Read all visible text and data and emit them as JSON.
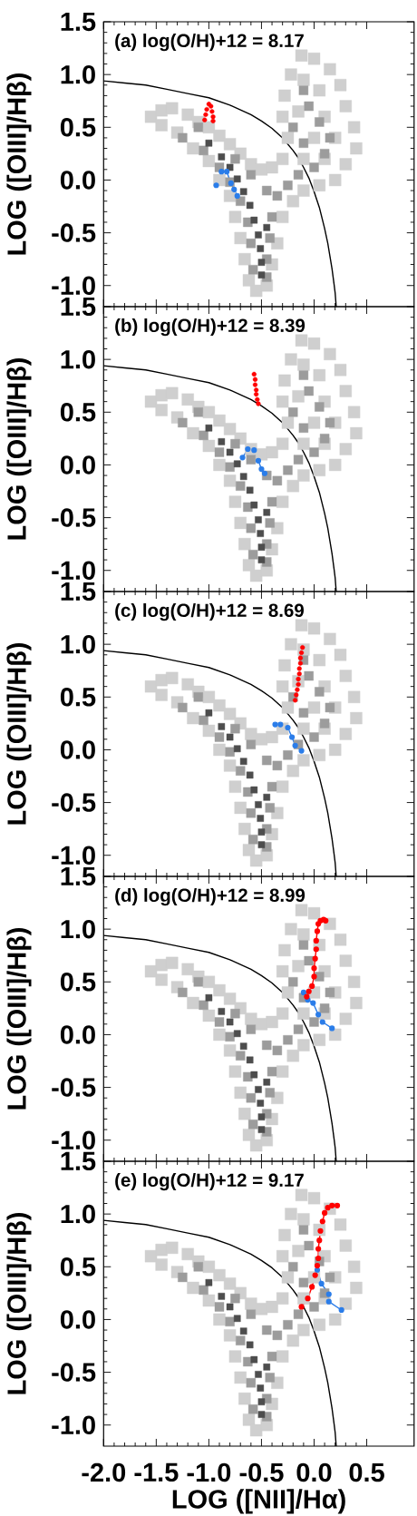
{
  "chart_data": [
    {
      "type": "scatter",
      "annotations": [
        "(a) log(O/H)+12 = 8.17"
      ],
      "ylabel": "LOG ([OIII]/Hβ)",
      "xlim": [
        -2.0,
        0.95
      ],
      "ylim": [
        -1.2,
        1.5
      ],
      "xticks": [
        -2,
        -1.5,
        -1,
        -0.5,
        0,
        0.5
      ],
      "yticks": [
        {
          "value": -1,
          "label": "-1.0"
        },
        -0.5,
        {
          "value": 0,
          "label": "0.0"
        },
        0.5,
        {
          "value": 1,
          "label": "1.0"
        },
        1.5
      ],
      "tick_labels": "y",
      "series": [
        {
          "color": "#cfcfcf",
          "marker": "square",
          "x": [
            -1.55,
            -1.45,
            -1.35,
            -1.45,
            -1.3,
            -1.2,
            -1.1,
            -1.0,
            -1.15,
            -1.0,
            -0.9,
            -0.8,
            -0.7,
            -0.9,
            -0.8,
            -0.75,
            -0.7,
            -0.66,
            -0.62,
            -0.55,
            -0.45,
            -0.4,
            -0.35,
            -0.6,
            -0.5,
            -0.4,
            -0.3,
            -0.3,
            -0.2,
            -0.1,
            0.05,
            0.2,
            0.3,
            0.4,
            0.38,
            0.3,
            0.25,
            0.15,
            0.0,
            -0.12,
            -0.22,
            -0.28,
            -0.3,
            -0.25,
            -0.1,
            0.1,
            0.2,
            0.1,
            0.05,
            -0.1,
            -0.15,
            0.0
          ],
          "values": [
            0.6,
            0.66,
            0.68,
            0.52,
            0.45,
            0.62,
            0.55,
            0.5,
            0.3,
            0.18,
            0.42,
            0.34,
            0.25,
            0.0,
            -0.15,
            -0.35,
            -0.55,
            -0.75,
            -0.95,
            -1.05,
            -1.0,
            -0.8,
            -0.6,
            0.15,
            0.1,
            0.12,
            0.2,
            -0.35,
            -0.2,
            -0.1,
            -0.05,
            0.0,
            0.15,
            0.3,
            0.5,
            0.7,
            0.9,
            1.05,
            1.15,
            1.18,
            1.0,
            0.8,
            0.6,
            0.4,
            0.2,
            0.2,
            0.4,
            0.6,
            0.85,
            0.95,
            0.65,
            0.4
          ]
        },
        {
          "color": "#9c9c9c",
          "marker": "square",
          "x": [
            -1.25,
            -1.1,
            -1.05,
            -0.9,
            -0.8,
            -0.7,
            -0.63,
            -0.6,
            -0.58,
            -0.42,
            -0.4,
            -0.45,
            -0.45,
            -0.6,
            -0.45,
            -0.35,
            -0.25,
            -0.15,
            0.0,
            0.1,
            0.15,
            0.05,
            -0.05,
            -0.1,
            -0.2,
            -0.1,
            -0.75
          ],
          "values": [
            0.4,
            0.5,
            0.28,
            0.12,
            -0.02,
            -0.2,
            -0.4,
            -0.6,
            -0.85,
            -0.55,
            -0.35,
            -0.75,
            -0.92,
            0.05,
            -0.1,
            -0.15,
            -0.05,
            0.05,
            0.12,
            0.25,
            0.4,
            0.55,
            0.7,
            0.85,
            0.5,
            0.35,
            0.2
          ]
        },
        {
          "color": "#4d4d4d",
          "marker": "square",
          "x": [
            -1.0,
            -0.88,
            -0.8,
            -0.73,
            -0.67,
            -0.61,
            -0.57,
            -0.53,
            -0.51,
            -0.5,
            -0.5,
            -0.45
          ],
          "values": [
            0.35,
            0.22,
            0.12,
            0.01,
            -0.11,
            -0.24,
            -0.38,
            -0.52,
            -0.65,
            -0.78,
            -0.9,
            -0.45
          ]
        },
        {
          "type": "line",
          "color": "#000000",
          "marker": "none",
          "x": [
            -2.0,
            -1.8,
            -1.6,
            -1.4,
            -1.2,
            -1.0,
            -0.8,
            -0.6,
            -0.5,
            -0.4,
            -0.3,
            -0.2,
            -0.15,
            -0.1,
            -0.05,
            0.0,
            0.05,
            0.1,
            0.13,
            0.15,
            0.17,
            0.19,
            0.2,
            0.21
          ],
          "values": [
            0.94,
            0.92,
            0.9,
            0.86,
            0.82,
            0.78,
            0.71,
            0.62,
            0.56,
            0.49,
            0.4,
            0.28,
            0.21,
            0.12,
            0.02,
            -0.11,
            -0.26,
            -0.46,
            -0.6,
            -0.72,
            -0.84,
            -0.99,
            -1.07,
            -1.2
          ]
        },
        {
          "type": "line",
          "color": "#2b7de9",
          "marker": "circle",
          "x": [
            -0.93,
            -0.88,
            -0.83,
            -0.79,
            -0.76,
            -0.73
          ],
          "values": [
            -0.05,
            0.08,
            0.08,
            -0.03,
            -0.09,
            -0.15
          ]
        },
        {
          "color": "#ff0000",
          "marker": "circle",
          "x": [
            -1.04,
            -1.03,
            -1.02,
            -1.0,
            -0.98,
            -0.97,
            -0.96,
            -0.96
          ],
          "values": [
            0.57,
            0.62,
            0.67,
            0.72,
            0.7,
            0.65,
            0.6,
            0.56
          ]
        }
      ]
    },
    {
      "type": "scatter",
      "annotations": [
        "(b) log(O/H)+12 = 8.39"
      ],
      "ylabel": "LOG ([OIII]/Hβ)",
      "xlim": [
        -2.0,
        0.95
      ],
      "ylim": [
        -1.2,
        1.5
      ],
      "xticks": [
        -2,
        -1.5,
        -1,
        -0.5,
        0,
        0.5
      ],
      "yticks": [
        {
          "value": -1,
          "label": "-1.0"
        },
        -0.5,
        {
          "value": 0,
          "label": "0.0"
        },
        0.5,
        {
          "value": 1,
          "label": "1.0"
        },
        1.5
      ],
      "tick_labels": "y",
      "series": [
        {
          "color": "#cfcfcf",
          "marker": "square",
          "x": [
            -1.55,
            -1.45,
            -1.35,
            -1.45,
            -1.3,
            -1.2,
            -1.1,
            -1.0,
            -1.15,
            -1.0,
            -0.9,
            -0.8,
            -0.7,
            -0.9,
            -0.8,
            -0.75,
            -0.7,
            -0.66,
            -0.62,
            -0.55,
            -0.45,
            -0.4,
            -0.35,
            -0.6,
            -0.5,
            -0.4,
            -0.3,
            -0.3,
            -0.2,
            -0.1,
            0.05,
            0.2,
            0.3,
            0.4,
            0.38,
            0.3,
            0.25,
            0.15,
            0.0,
            -0.12,
            -0.22,
            -0.28,
            -0.3,
            -0.25,
            -0.1,
            0.1,
            0.2,
            0.1,
            0.05,
            -0.1,
            -0.15,
            0.0
          ],
          "values": [
            0.6,
            0.66,
            0.68,
            0.52,
            0.45,
            0.62,
            0.55,
            0.5,
            0.3,
            0.18,
            0.42,
            0.34,
            0.25,
            0.0,
            -0.15,
            -0.35,
            -0.55,
            -0.75,
            -0.95,
            -1.05,
            -1.0,
            -0.8,
            -0.6,
            0.15,
            0.1,
            0.12,
            0.2,
            -0.35,
            -0.2,
            -0.1,
            -0.05,
            0.0,
            0.15,
            0.3,
            0.5,
            0.7,
            0.9,
            1.05,
            1.15,
            1.18,
            1.0,
            0.8,
            0.6,
            0.4,
            0.2,
            0.2,
            0.4,
            0.6,
            0.85,
            0.95,
            0.65,
            0.4
          ]
        },
        {
          "color": "#9c9c9c",
          "marker": "square",
          "x": [
            -1.25,
            -1.1,
            -1.05,
            -0.9,
            -0.8,
            -0.7,
            -0.63,
            -0.6,
            -0.58,
            -0.42,
            -0.4,
            -0.45,
            -0.45,
            -0.6,
            -0.45,
            -0.35,
            -0.25,
            -0.15,
            0.0,
            0.1,
            0.15,
            0.05,
            -0.05,
            -0.1,
            -0.2,
            -0.1,
            -0.75
          ],
          "values": [
            0.4,
            0.5,
            0.28,
            0.12,
            -0.02,
            -0.2,
            -0.4,
            -0.6,
            -0.85,
            -0.55,
            -0.35,
            -0.75,
            -0.92,
            0.05,
            -0.1,
            -0.15,
            -0.05,
            0.05,
            0.12,
            0.25,
            0.4,
            0.55,
            0.7,
            0.85,
            0.5,
            0.35,
            0.2
          ]
        },
        {
          "color": "#4d4d4d",
          "marker": "square",
          "x": [
            -1.0,
            -0.88,
            -0.8,
            -0.73,
            -0.67,
            -0.61,
            -0.57,
            -0.53,
            -0.51,
            -0.5,
            -0.5,
            -0.45
          ],
          "values": [
            0.35,
            0.22,
            0.12,
            0.01,
            -0.11,
            -0.24,
            -0.38,
            -0.52,
            -0.65,
            -0.78,
            -0.9,
            -0.45
          ]
        },
        {
          "type": "line",
          "color": "#000000",
          "marker": "none",
          "x": [
            -2.0,
            -1.8,
            -1.6,
            -1.4,
            -1.2,
            -1.0,
            -0.8,
            -0.6,
            -0.5,
            -0.4,
            -0.3,
            -0.2,
            -0.15,
            -0.1,
            -0.05,
            0.0,
            0.05,
            0.1,
            0.13,
            0.15,
            0.17,
            0.19,
            0.2,
            0.21
          ],
          "values": [
            0.94,
            0.92,
            0.9,
            0.86,
            0.82,
            0.78,
            0.71,
            0.62,
            0.56,
            0.49,
            0.4,
            0.28,
            0.21,
            0.12,
            0.02,
            -0.11,
            -0.26,
            -0.46,
            -0.6,
            -0.72,
            -0.84,
            -0.99,
            -1.07,
            -1.2
          ]
        },
        {
          "type": "line",
          "color": "#2b7de9",
          "marker": "circle",
          "x": [
            -0.68,
            -0.63,
            -0.57,
            -0.53,
            -0.5,
            -0.47
          ],
          "values": [
            0.07,
            0.15,
            0.14,
            0.04,
            -0.04,
            -0.08
          ]
        },
        {
          "color": "#ff0000",
          "marker": "circle",
          "x": [
            -0.57,
            -0.56,
            -0.56,
            -0.55,
            -0.55,
            -0.54,
            -0.53
          ],
          "values": [
            0.86,
            0.81,
            0.76,
            0.71,
            0.67,
            0.62,
            0.58
          ]
        }
      ]
    },
    {
      "type": "scatter",
      "annotations": [
        "(c) log(O/H)+12 = 8.69"
      ],
      "ylabel": "LOG ([OIII]/Hβ)",
      "xlim": [
        -2.0,
        0.95
      ],
      "ylim": [
        -1.2,
        1.5
      ],
      "xticks": [
        -2,
        -1.5,
        -1,
        -0.5,
        0,
        0.5
      ],
      "yticks": [
        {
          "value": -1,
          "label": "-1.0"
        },
        -0.5,
        {
          "value": 0,
          "label": "0.0"
        },
        0.5,
        {
          "value": 1,
          "label": "1.0"
        },
        1.5
      ],
      "tick_labels": "y",
      "series": [
        {
          "color": "#cfcfcf",
          "marker": "square",
          "x": [
            -1.55,
            -1.45,
            -1.35,
            -1.45,
            -1.3,
            -1.2,
            -1.1,
            -1.0,
            -1.15,
            -1.0,
            -0.9,
            -0.8,
            -0.7,
            -0.9,
            -0.8,
            -0.75,
            -0.7,
            -0.66,
            -0.62,
            -0.55,
            -0.45,
            -0.4,
            -0.35,
            -0.6,
            -0.5,
            -0.4,
            -0.3,
            -0.3,
            -0.2,
            -0.1,
            0.05,
            0.2,
            0.3,
            0.4,
            0.38,
            0.3,
            0.25,
            0.15,
            0.0,
            -0.12,
            -0.22,
            -0.28,
            -0.3,
            -0.25,
            -0.1,
            0.1,
            0.2,
            0.1,
            0.05,
            -0.1,
            -0.15,
            0.0
          ],
          "values": [
            0.6,
            0.66,
            0.68,
            0.52,
            0.45,
            0.62,
            0.55,
            0.5,
            0.3,
            0.18,
            0.42,
            0.34,
            0.25,
            0.0,
            -0.15,
            -0.35,
            -0.55,
            -0.75,
            -0.95,
            -1.05,
            -1.0,
            -0.8,
            -0.6,
            0.15,
            0.1,
            0.12,
            0.2,
            -0.35,
            -0.2,
            -0.1,
            -0.05,
            0.0,
            0.15,
            0.3,
            0.5,
            0.7,
            0.9,
            1.05,
            1.15,
            1.18,
            1.0,
            0.8,
            0.6,
            0.4,
            0.2,
            0.2,
            0.4,
            0.6,
            0.85,
            0.95,
            0.65,
            0.4
          ]
        },
        {
          "color": "#9c9c9c",
          "marker": "square",
          "x": [
            -1.25,
            -1.1,
            -1.05,
            -0.9,
            -0.8,
            -0.7,
            -0.63,
            -0.6,
            -0.58,
            -0.42,
            -0.4,
            -0.45,
            -0.45,
            -0.6,
            -0.45,
            -0.35,
            -0.25,
            -0.15,
            0.0,
            0.1,
            0.15,
            0.05,
            -0.05,
            -0.1,
            -0.2,
            -0.1,
            -0.75
          ],
          "values": [
            0.4,
            0.5,
            0.28,
            0.12,
            -0.02,
            -0.2,
            -0.4,
            -0.6,
            -0.85,
            -0.55,
            -0.35,
            -0.75,
            -0.92,
            0.05,
            -0.1,
            -0.15,
            -0.05,
            0.05,
            0.12,
            0.25,
            0.4,
            0.55,
            0.7,
            0.85,
            0.5,
            0.35,
            0.2
          ]
        },
        {
          "color": "#4d4d4d",
          "marker": "square",
          "x": [
            -1.0,
            -0.88,
            -0.8,
            -0.73,
            -0.67,
            -0.61,
            -0.57,
            -0.53,
            -0.51,
            -0.5,
            -0.5,
            -0.45
          ],
          "values": [
            0.35,
            0.22,
            0.12,
            0.01,
            -0.11,
            -0.24,
            -0.38,
            -0.52,
            -0.65,
            -0.78,
            -0.9,
            -0.45
          ]
        },
        {
          "type": "line",
          "color": "#000000",
          "marker": "none",
          "x": [
            -2.0,
            -1.8,
            -1.6,
            -1.4,
            -1.2,
            -1.0,
            -0.8,
            -0.6,
            -0.5,
            -0.4,
            -0.3,
            -0.2,
            -0.15,
            -0.1,
            -0.05,
            0.0,
            0.05,
            0.1,
            0.13,
            0.15,
            0.17,
            0.19,
            0.2,
            0.21
          ],
          "values": [
            0.94,
            0.92,
            0.9,
            0.86,
            0.82,
            0.78,
            0.71,
            0.62,
            0.56,
            0.49,
            0.4,
            0.28,
            0.21,
            0.12,
            0.02,
            -0.11,
            -0.26,
            -0.46,
            -0.6,
            -0.72,
            -0.84,
            -0.99,
            -1.07,
            -1.2
          ]
        },
        {
          "type": "line",
          "color": "#2b7de9",
          "marker": "circle",
          "x": [
            -0.37,
            -0.32,
            -0.25,
            -0.21,
            -0.18,
            -0.12
          ],
          "values": [
            0.24,
            0.24,
            0.21,
            0.12,
            0.04,
            -0.01
          ]
        },
        {
          "color": "#ff0000",
          "marker": "circle",
          "x": [
            -0.18,
            -0.17,
            -0.16,
            -0.15,
            -0.15,
            -0.14,
            -0.14,
            -0.13,
            -0.13,
            -0.12,
            -0.11
          ],
          "values": [
            0.47,
            0.52,
            0.57,
            0.62,
            0.67,
            0.72,
            0.77,
            0.82,
            0.87,
            0.92,
            0.97
          ]
        }
      ]
    },
    {
      "type": "scatter",
      "annotations": [
        "(d) log(O/H)+12 = 8.99"
      ],
      "ylabel": "LOG ([OIII]/Hβ)",
      "xlim": [
        -2.0,
        0.95
      ],
      "ylim": [
        -1.2,
        1.5
      ],
      "xticks": [
        -2,
        -1.5,
        -1,
        -0.5,
        0,
        0.5
      ],
      "yticks": [
        {
          "value": -1,
          "label": "-1.0"
        },
        -0.5,
        {
          "value": 0,
          "label": "0.0"
        },
        0.5,
        {
          "value": 1,
          "label": "1.0"
        },
        1.5
      ],
      "tick_labels": "y",
      "series": [
        {
          "color": "#cfcfcf",
          "marker": "square",
          "x": [
            -1.55,
            -1.45,
            -1.35,
            -1.45,
            -1.3,
            -1.2,
            -1.1,
            -1.0,
            -1.15,
            -1.0,
            -0.9,
            -0.8,
            -0.7,
            -0.9,
            -0.8,
            -0.75,
            -0.7,
            -0.66,
            -0.62,
            -0.55,
            -0.45,
            -0.4,
            -0.35,
            -0.6,
            -0.5,
            -0.4,
            -0.3,
            -0.3,
            -0.2,
            -0.1,
            0.05,
            0.2,
            0.3,
            0.4,
            0.38,
            0.3,
            0.25,
            0.15,
            0.0,
            -0.12,
            -0.22,
            -0.28,
            -0.3,
            -0.25,
            -0.1,
            0.1,
            0.2,
            0.1,
            0.05,
            -0.1,
            -0.15,
            0.0
          ],
          "values": [
            0.6,
            0.66,
            0.68,
            0.52,
            0.45,
            0.62,
            0.55,
            0.5,
            0.3,
            0.18,
            0.42,
            0.34,
            0.25,
            0.0,
            -0.15,
            -0.35,
            -0.55,
            -0.75,
            -0.95,
            -1.05,
            -1.0,
            -0.8,
            -0.6,
            0.15,
            0.1,
            0.12,
            0.2,
            -0.35,
            -0.2,
            -0.1,
            -0.05,
            0.0,
            0.15,
            0.3,
            0.5,
            0.7,
            0.9,
            1.05,
            1.15,
            1.18,
            1.0,
            0.8,
            0.6,
            0.4,
            0.2,
            0.2,
            0.4,
            0.6,
            0.85,
            0.95,
            0.65,
            0.4
          ]
        },
        {
          "color": "#9c9c9c",
          "marker": "square",
          "x": [
            -1.25,
            -1.1,
            -1.05,
            -0.9,
            -0.8,
            -0.7,
            -0.63,
            -0.6,
            -0.58,
            -0.42,
            -0.4,
            -0.45,
            -0.45,
            -0.6,
            -0.45,
            -0.35,
            -0.25,
            -0.15,
            0.0,
            0.1,
            0.15,
            0.05,
            -0.05,
            -0.1,
            -0.2,
            -0.1,
            -0.75
          ],
          "values": [
            0.4,
            0.5,
            0.28,
            0.12,
            -0.02,
            -0.2,
            -0.4,
            -0.6,
            -0.85,
            -0.55,
            -0.35,
            -0.75,
            -0.92,
            0.05,
            -0.1,
            -0.15,
            -0.05,
            0.05,
            0.12,
            0.25,
            0.4,
            0.55,
            0.7,
            0.85,
            0.5,
            0.35,
            0.2
          ]
        },
        {
          "color": "#4d4d4d",
          "marker": "square",
          "x": [
            -1.0,
            -0.88,
            -0.8,
            -0.73,
            -0.67,
            -0.61,
            -0.57,
            -0.53,
            -0.51,
            -0.5,
            -0.5,
            -0.45
          ],
          "values": [
            0.35,
            0.22,
            0.12,
            0.01,
            -0.11,
            -0.24,
            -0.38,
            -0.52,
            -0.65,
            -0.78,
            -0.9,
            -0.45
          ]
        },
        {
          "type": "line",
          "color": "#000000",
          "marker": "none",
          "x": [
            -2.0,
            -1.8,
            -1.6,
            -1.4,
            -1.2,
            -1.0,
            -0.8,
            -0.6,
            -0.5,
            -0.4,
            -0.3,
            -0.2,
            -0.15,
            -0.1,
            -0.05,
            0.0,
            0.05,
            0.1,
            0.13,
            0.15,
            0.17,
            0.19,
            0.2,
            0.21
          ],
          "values": [
            0.94,
            0.92,
            0.9,
            0.86,
            0.82,
            0.78,
            0.71,
            0.62,
            0.56,
            0.49,
            0.4,
            0.28,
            0.21,
            0.12,
            0.02,
            -0.11,
            -0.26,
            -0.46,
            -0.6,
            -0.72,
            -0.84,
            -0.99,
            -1.07,
            -1.2
          ]
        },
        {
          "type": "line",
          "color": "#2b7de9",
          "marker": "circle",
          "x": [
            -0.1,
            -0.06,
            -0.01,
            0.04,
            0.08,
            0.17
          ],
          "values": [
            0.4,
            0.33,
            0.3,
            0.19,
            0.12,
            0.06
          ]
        },
        {
          "type": "line",
          "color": "#ff0000",
          "marker": "circle",
          "x": [
            -0.07,
            -0.05,
            -0.02,
            0.0,
            0.0,
            0.01,
            0.02,
            0.02,
            0.03,
            0.04,
            0.06,
            0.09,
            0.11
          ],
          "values": [
            0.36,
            0.41,
            0.46,
            0.55,
            0.63,
            0.72,
            0.81,
            0.89,
            0.98,
            1.05,
            1.08,
            1.09,
            1.08
          ]
        }
      ]
    },
    {
      "type": "scatter",
      "annotations": [
        "(e) log(O/H)+12 = 9.17"
      ],
      "xlabel": "LOG ([NII]/Hα)",
      "ylabel": "LOG ([OIII]/Hβ)",
      "xlim": [
        -2.0,
        0.95
      ],
      "ylim": [
        -1.2,
        1.5
      ],
      "xticks": [
        {
          "value": -2,
          "label": "-2.0"
        },
        -1.5,
        {
          "value": -1,
          "label": "-1.0"
        },
        -0.5,
        {
          "value": 0,
          "label": "0.0"
        },
        0.5
      ],
      "yticks": [
        {
          "value": -1,
          "label": "-1.0"
        },
        -0.5,
        {
          "value": 0,
          "label": "0.0"
        },
        0.5,
        {
          "value": 1,
          "label": "1.0"
        },
        1.5
      ],
      "series": [
        {
          "color": "#cfcfcf",
          "marker": "square",
          "x": [
            -1.55,
            -1.45,
            -1.35,
            -1.45,
            -1.3,
            -1.2,
            -1.1,
            -1.0,
            -1.15,
            -1.0,
            -0.9,
            -0.8,
            -0.7,
            -0.9,
            -0.8,
            -0.75,
            -0.7,
            -0.66,
            -0.62,
            -0.55,
            -0.45,
            -0.4,
            -0.35,
            -0.6,
            -0.5,
            -0.4,
            -0.3,
            -0.3,
            -0.2,
            -0.1,
            0.05,
            0.2,
            0.3,
            0.4,
            0.38,
            0.3,
            0.25,
            0.15,
            0.0,
            -0.12,
            -0.22,
            -0.28,
            -0.3,
            -0.25,
            -0.1,
            0.1,
            0.2,
            0.1,
            0.05,
            -0.1,
            -0.15,
            0.0
          ],
          "values": [
            0.6,
            0.66,
            0.68,
            0.52,
            0.45,
            0.62,
            0.55,
            0.5,
            0.3,
            0.18,
            0.42,
            0.34,
            0.25,
            0.0,
            -0.15,
            -0.35,
            -0.55,
            -0.75,
            -0.95,
            -1.05,
            -1.0,
            -0.8,
            -0.6,
            0.15,
            0.1,
            0.12,
            0.2,
            -0.35,
            -0.2,
            -0.1,
            -0.05,
            0.0,
            0.15,
            0.3,
            0.5,
            0.7,
            0.9,
            1.05,
            1.15,
            1.18,
            1.0,
            0.8,
            0.6,
            0.4,
            0.2,
            0.2,
            0.4,
            0.6,
            0.85,
            0.95,
            0.65,
            0.4
          ]
        },
        {
          "color": "#9c9c9c",
          "marker": "square",
          "x": [
            -1.25,
            -1.1,
            -1.05,
            -0.9,
            -0.8,
            -0.7,
            -0.63,
            -0.6,
            -0.58,
            -0.42,
            -0.4,
            -0.45,
            -0.45,
            -0.6,
            -0.45,
            -0.35,
            -0.25,
            -0.15,
            0.0,
            0.1,
            0.15,
            0.05,
            -0.05,
            -0.1,
            -0.2,
            -0.1,
            -0.75
          ],
          "values": [
            0.4,
            0.5,
            0.28,
            0.12,
            -0.02,
            -0.2,
            -0.4,
            -0.6,
            -0.85,
            -0.55,
            -0.35,
            -0.75,
            -0.92,
            0.05,
            -0.1,
            -0.15,
            -0.05,
            0.05,
            0.12,
            0.25,
            0.4,
            0.55,
            0.7,
            0.85,
            0.5,
            0.35,
            0.2
          ]
        },
        {
          "color": "#4d4d4d",
          "marker": "square",
          "x": [
            -1.0,
            -0.88,
            -0.8,
            -0.73,
            -0.67,
            -0.61,
            -0.57,
            -0.53,
            -0.51,
            -0.5,
            -0.5,
            -0.45
          ],
          "values": [
            0.35,
            0.22,
            0.12,
            0.01,
            -0.11,
            -0.24,
            -0.38,
            -0.52,
            -0.65,
            -0.78,
            -0.9,
            -0.45
          ]
        },
        {
          "type": "line",
          "color": "#000000",
          "marker": "none",
          "x": [
            -2.0,
            -1.8,
            -1.6,
            -1.4,
            -1.2,
            -1.0,
            -0.8,
            -0.6,
            -0.5,
            -0.4,
            -0.3,
            -0.2,
            -0.15,
            -0.1,
            -0.05,
            0.0,
            0.05,
            0.1,
            0.13,
            0.15,
            0.17,
            0.19,
            0.2,
            0.21
          ],
          "values": [
            0.94,
            0.92,
            0.9,
            0.86,
            0.82,
            0.78,
            0.71,
            0.62,
            0.56,
            0.49,
            0.4,
            0.28,
            0.21,
            0.12,
            0.02,
            -0.11,
            -0.26,
            -0.46,
            -0.6,
            -0.72,
            -0.84,
            -0.99,
            -1.07,
            -1.2
          ]
        },
        {
          "type": "line",
          "color": "#2b7de9",
          "marker": "circle",
          "x": [
            0.03,
            0.07,
            0.14,
            0.14,
            0.26
          ],
          "values": [
            0.47,
            0.34,
            0.24,
            0.17,
            0.09
          ]
        },
        {
          "type": "line",
          "color": "#ff0000",
          "marker": "circle",
          "x": [
            -0.12,
            -0.06,
            -0.02,
            0.01,
            0.03,
            0.04,
            0.04,
            0.05,
            0.06,
            0.08,
            0.1,
            0.13,
            0.17,
            0.22
          ],
          "values": [
            0.12,
            0.2,
            0.31,
            0.42,
            0.51,
            0.58,
            0.67,
            0.75,
            0.84,
            0.93,
            1.01,
            1.06,
            1.08,
            1.08
          ]
        }
      ]
    }
  ]
}
